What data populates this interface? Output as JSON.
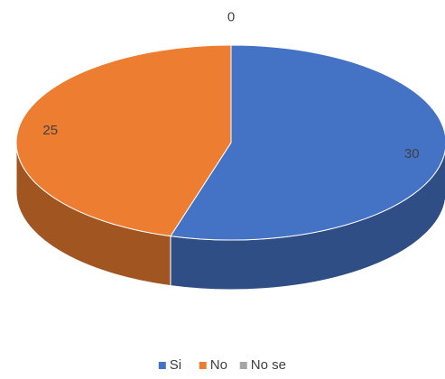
{
  "chart_data": {
    "type": "pie",
    "categories": [
      "Si",
      "No",
      "No se"
    ],
    "values": [
      30,
      25,
      0
    ],
    "colors": [
      "#4472c4",
      "#ed7d31",
      "#a5a5a5"
    ],
    "legend": "bottom"
  }
}
